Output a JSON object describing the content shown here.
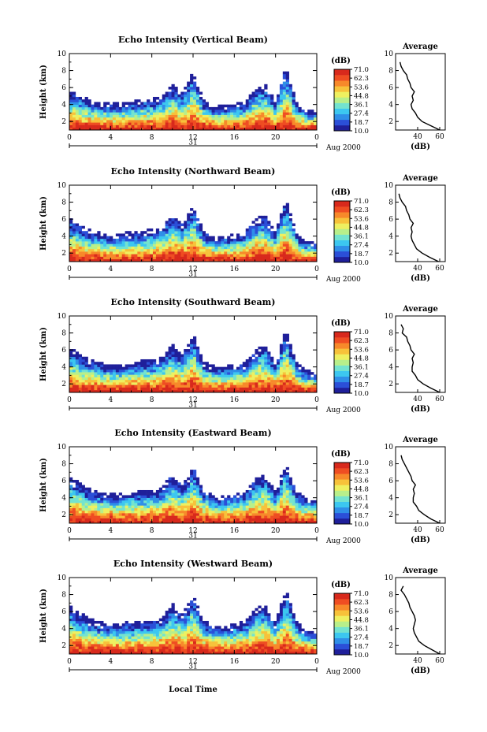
{
  "figure": {
    "xlabel": "Local Time",
    "colors": {
      "colormap": [
        "#1f1f9a",
        "#2b4fd8",
        "#2f8fe8",
        "#3cc7f0",
        "#73e3cf",
        "#b8ef8a",
        "#eef060",
        "#f7c23a",
        "#f7892a",
        "#ef4d22",
        "#d8291c"
      ],
      "blank": "#ffffff",
      "profile": "#000000"
    }
  },
  "chart_data": [
    {
      "type": "heatmap",
      "title": "Echo Intensity (Vertical Beam)",
      "ylabel": "Height (km)",
      "xlim": [
        0,
        24
      ],
      "xticks": [
        "0",
        "4",
        "8",
        "12",
        "16",
        "20",
        "0"
      ],
      "day_label": "31",
      "date_label": "Aug 2000",
      "ylim": [
        1,
        10
      ],
      "yticks": [
        "2",
        "4",
        "6",
        "8",
        "10"
      ],
      "colorbar": {
        "unit": "(dB)",
        "levels": [
          "71.0",
          "62.3",
          "53.6",
          "44.8",
          "36.1",
          "27.4",
          "18.7",
          "10.0"
        ],
        "range": [
          10.0,
          71.0
        ]
      },
      "echo_top_km": [
        [
          0,
          5.5
        ],
        [
          1,
          4.8
        ],
        [
          2,
          4.3
        ],
        [
          3,
          4.0
        ],
        [
          4,
          3.8
        ],
        [
          5,
          3.9
        ],
        [
          6,
          4.1
        ],
        [
          7,
          4.3
        ],
        [
          8,
          4.4
        ],
        [
          9,
          4.6
        ],
        [
          10,
          6.0
        ],
        [
          11,
          5.0
        ],
        [
          12,
          7.5
        ],
        [
          13,
          4.2
        ],
        [
          14,
          3.5
        ],
        [
          15,
          3.6
        ],
        [
          16,
          3.8
        ],
        [
          17,
          4.0
        ],
        [
          18,
          5.5
        ],
        [
          19,
          6.0
        ],
        [
          20,
          4.0
        ],
        [
          21,
          8.0
        ],
        [
          22,
          4.0
        ],
        [
          23,
          3.0
        ],
        [
          24,
          3.0
        ]
      ],
      "average_profile": {
        "title": "Average",
        "xlabel": "(dB)",
        "xticks": [
          "40",
          "60"
        ],
        "xlim": [
          20,
          65
        ],
        "yticks": [
          "2",
          "4",
          "6",
          "8",
          "10"
        ],
        "points": [
          [
            60,
            1.0
          ],
          [
            52,
            1.5
          ],
          [
            44,
            2.0
          ],
          [
            40,
            2.5
          ],
          [
            38,
            3.0
          ],
          [
            35,
            3.5
          ],
          [
            34,
            4.0
          ],
          [
            36,
            4.5
          ],
          [
            35,
            5.0
          ],
          [
            37,
            5.5
          ],
          [
            34,
            6.0
          ],
          [
            33,
            6.5
          ],
          [
            31,
            7.0
          ],
          [
            30,
            7.5
          ],
          [
            27,
            8.0
          ],
          [
            25,
            8.5
          ],
          [
            24,
            9.0
          ]
        ]
      }
    },
    {
      "type": "heatmap",
      "title": "Echo Intensity (Northward Beam)",
      "ylabel": "Height (km)",
      "xlim": [
        0,
        24
      ],
      "xticks": [
        "0",
        "4",
        "8",
        "12",
        "16",
        "20",
        "0"
      ],
      "day_label": "31",
      "date_label": "Aug 2000",
      "ylim": [
        1,
        10
      ],
      "yticks": [
        "2",
        "4",
        "6",
        "8",
        "10"
      ],
      "colorbar": {
        "unit": "(dB)",
        "levels": [
          "71.0",
          "62.3",
          "53.6",
          "44.8",
          "36.1",
          "27.4",
          "18.7",
          "10.0"
        ],
        "range": [
          10.0,
          71.0
        ]
      },
      "echo_top_km": [
        [
          0,
          5.8
        ],
        [
          1,
          5.0
        ],
        [
          2,
          4.4
        ],
        [
          3,
          4.1
        ],
        [
          4,
          3.9
        ],
        [
          5,
          4.0
        ],
        [
          6,
          4.2
        ],
        [
          7,
          4.3
        ],
        [
          8,
          4.5
        ],
        [
          9,
          4.7
        ],
        [
          10,
          6.3
        ],
        [
          11,
          5.2
        ],
        [
          12,
          7.3
        ],
        [
          13,
          4.3
        ],
        [
          14,
          3.7
        ],
        [
          15,
          3.7
        ],
        [
          16,
          3.9
        ],
        [
          17,
          4.1
        ],
        [
          18,
          5.7
        ],
        [
          19,
          6.2
        ],
        [
          20,
          4.2
        ],
        [
          21,
          8.2
        ],
        [
          22,
          4.1
        ],
        [
          23,
          3.2
        ],
        [
          24,
          3.1
        ]
      ],
      "average_profile": {
        "title": "Average",
        "xlabel": "(dB)",
        "xticks": [
          "40",
          "60"
        ],
        "xlim": [
          20,
          65
        ],
        "yticks": [
          "2",
          "4",
          "6",
          "8",
          "10"
        ],
        "points": [
          [
            59,
            1.0
          ],
          [
            51,
            1.5
          ],
          [
            44,
            2.0
          ],
          [
            39,
            2.5
          ],
          [
            37,
            3.0
          ],
          [
            35,
            3.5
          ],
          [
            34,
            4.0
          ],
          [
            35,
            4.5
          ],
          [
            34,
            5.0
          ],
          [
            36,
            5.5
          ],
          [
            33,
            6.0
          ],
          [
            32,
            6.5
          ],
          [
            30,
            7.0
          ],
          [
            29,
            7.5
          ],
          [
            26,
            8.0
          ],
          [
            24,
            8.5
          ],
          [
            23,
            9.0
          ]
        ]
      }
    },
    {
      "type": "heatmap",
      "title": "Echo Intensity (Southward Beam)",
      "ylabel": "Height (km)",
      "xlim": [
        0,
        24
      ],
      "xticks": [
        "0",
        "4",
        "8",
        "12",
        "16",
        "20",
        "0"
      ],
      "day_label": "31",
      "date_label": "Aug 2000",
      "ylim": [
        1,
        10
      ],
      "yticks": [
        "2",
        "4",
        "6",
        "8",
        "10"
      ],
      "colorbar": {
        "unit": "(dB)",
        "levels": [
          "71.0",
          "62.3",
          "53.6",
          "44.8",
          "36.1",
          "27.4",
          "18.7",
          "10.0"
        ],
        "range": [
          10.0,
          71.0
        ]
      },
      "echo_top_km": [
        [
          0,
          6.0
        ],
        [
          1,
          5.2
        ],
        [
          2,
          4.5
        ],
        [
          3,
          4.2
        ],
        [
          4,
          4.0
        ],
        [
          5,
          4.0
        ],
        [
          6,
          4.2
        ],
        [
          7,
          4.4
        ],
        [
          8,
          4.5
        ],
        [
          9,
          4.8
        ],
        [
          10,
          6.4
        ],
        [
          11,
          5.0
        ],
        [
          12,
          7.6
        ],
        [
          13,
          4.4
        ],
        [
          14,
          3.8
        ],
        [
          15,
          3.7
        ],
        [
          16,
          4.0
        ],
        [
          17,
          4.2
        ],
        [
          18,
          5.6
        ],
        [
          19,
          6.4
        ],
        [
          20,
          4.1
        ],
        [
          21,
          8.0
        ],
        [
          22,
          4.2
        ],
        [
          23,
          3.3
        ],
        [
          24,
          3.0
        ]
      ],
      "average_profile": {
        "title": "Average",
        "xlabel": "(dB)",
        "xticks": [
          "40",
          "60"
        ],
        "xlim": [
          20,
          65
        ],
        "yticks": [
          "2",
          "4",
          "6",
          "8",
          "10"
        ],
        "points": [
          [
            60,
            1.0
          ],
          [
            52,
            1.5
          ],
          [
            45,
            2.0
          ],
          [
            40,
            2.5
          ],
          [
            38,
            3.0
          ],
          [
            35,
            3.5
          ],
          [
            35,
            4.0
          ],
          [
            36,
            4.5
          ],
          [
            35,
            5.0
          ],
          [
            37,
            5.5
          ],
          [
            34,
            6.0
          ],
          [
            33,
            6.5
          ],
          [
            31,
            7.0
          ],
          [
            30,
            7.5
          ],
          [
            26,
            8.0
          ],
          [
            27,
            8.5
          ],
          [
            25,
            9.0
          ]
        ]
      }
    },
    {
      "type": "heatmap",
      "title": "Echo Intensity (Eastward Beam)",
      "ylabel": "Height (km)",
      "xlim": [
        0,
        24
      ],
      "xticks": [
        "0",
        "4",
        "8",
        "12",
        "16",
        "20",
        "0"
      ],
      "day_label": "31",
      "date_label": "Aug 2000",
      "ylim": [
        1,
        10
      ],
      "yticks": [
        "2",
        "4",
        "6",
        "8",
        "10"
      ],
      "colorbar": {
        "unit": "(dB)",
        "levels": [
          "71.0",
          "62.3",
          "53.6",
          "44.8",
          "36.1",
          "27.4",
          "18.7",
          "10.0"
        ],
        "range": [
          10.0,
          71.0
        ]
      },
      "echo_top_km": [
        [
          0,
          6.2
        ],
        [
          1,
          5.4
        ],
        [
          2,
          4.7
        ],
        [
          3,
          4.4
        ],
        [
          4,
          4.2
        ],
        [
          5,
          4.2
        ],
        [
          6,
          4.4
        ],
        [
          7,
          4.5
        ],
        [
          8,
          4.6
        ],
        [
          9,
          4.9
        ],
        [
          10,
          6.5
        ],
        [
          11,
          5.2
        ],
        [
          12,
          7.4
        ],
        [
          13,
          4.6
        ],
        [
          14,
          4.0
        ],
        [
          15,
          3.9
        ],
        [
          16,
          4.2
        ],
        [
          17,
          4.4
        ],
        [
          18,
          5.8
        ],
        [
          19,
          6.5
        ],
        [
          20,
          4.3
        ],
        [
          21,
          7.9
        ],
        [
          22,
          4.4
        ],
        [
          23,
          3.6
        ],
        [
          24,
          3.4
        ]
      ],
      "average_profile": {
        "title": "Average",
        "xlabel": "(dB)",
        "xticks": [
          "40",
          "60"
        ],
        "xlim": [
          20,
          65
        ],
        "yticks": [
          "2",
          "4",
          "6",
          "8",
          "10"
        ],
        "points": [
          [
            60,
            1.0
          ],
          [
            52,
            1.5
          ],
          [
            46,
            2.0
          ],
          [
            41,
            2.5
          ],
          [
            39,
            3.0
          ],
          [
            36,
            3.5
          ],
          [
            36,
            4.0
          ],
          [
            37,
            4.5
          ],
          [
            36,
            5.0
          ],
          [
            38,
            5.5
          ],
          [
            35,
            6.0
          ],
          [
            34,
            6.5
          ],
          [
            32,
            7.0
          ],
          [
            30,
            7.5
          ],
          [
            28,
            8.0
          ],
          [
            26,
            8.5
          ],
          [
            25,
            9.0
          ]
        ]
      }
    },
    {
      "type": "heatmap",
      "title": "Echo Intensity (Westward Beam)",
      "ylabel": "Height (km)",
      "xlim": [
        0,
        24
      ],
      "xticks": [
        "0",
        "4",
        "8",
        "12",
        "16",
        "20",
        "0"
      ],
      "day_label": "31",
      "date_label": "Aug 2000",
      "ylim": [
        1,
        10
      ],
      "yticks": [
        "2",
        "4",
        "6",
        "8",
        "10"
      ],
      "colorbar": {
        "unit": "(dB)",
        "levels": [
          "71.0",
          "62.3",
          "53.6",
          "44.8",
          "36.1",
          "27.4",
          "18.7",
          "10.0"
        ],
        "range": [
          10.0,
          71.0
        ]
      },
      "echo_top_km": [
        [
          0,
          6.4
        ],
        [
          1,
          5.6
        ],
        [
          2,
          4.8
        ],
        [
          3,
          4.5
        ],
        [
          4,
          4.3
        ],
        [
          5,
          4.3
        ],
        [
          6,
          4.5
        ],
        [
          7,
          4.6
        ],
        [
          8,
          4.7
        ],
        [
          9,
          5.0
        ],
        [
          10,
          6.6
        ],
        [
          11,
          5.4
        ],
        [
          12,
          7.7
        ],
        [
          13,
          4.7
        ],
        [
          14,
          4.0
        ],
        [
          15,
          4.0
        ],
        [
          16,
          4.3
        ],
        [
          17,
          4.5
        ],
        [
          18,
          5.9
        ],
        [
          19,
          6.6
        ],
        [
          20,
          4.4
        ],
        [
          21,
          8.3
        ],
        [
          22,
          4.5
        ],
        [
          23,
          3.5
        ],
        [
          24,
          3.3
        ]
      ],
      "average_profile": {
        "title": "Average",
        "xlabel": "(dB)",
        "xticks": [
          "40",
          "60"
        ],
        "xlim": [
          20,
          65
        ],
        "yticks": [
          "2",
          "4",
          "6",
          "8",
          "10"
        ],
        "points": [
          [
            60,
            1.0
          ],
          [
            53,
            1.5
          ],
          [
            46,
            2.0
          ],
          [
            41,
            2.5
          ],
          [
            39,
            3.0
          ],
          [
            37,
            3.5
          ],
          [
            36,
            4.0
          ],
          [
            37,
            4.5
          ],
          [
            38,
            5.0
          ],
          [
            37,
            5.5
          ],
          [
            35,
            6.0
          ],
          [
            33,
            6.5
          ],
          [
            32,
            7.0
          ],
          [
            30,
            7.5
          ],
          [
            28,
            8.0
          ],
          [
            25,
            8.5
          ],
          [
            27,
            9.0
          ]
        ]
      }
    }
  ]
}
